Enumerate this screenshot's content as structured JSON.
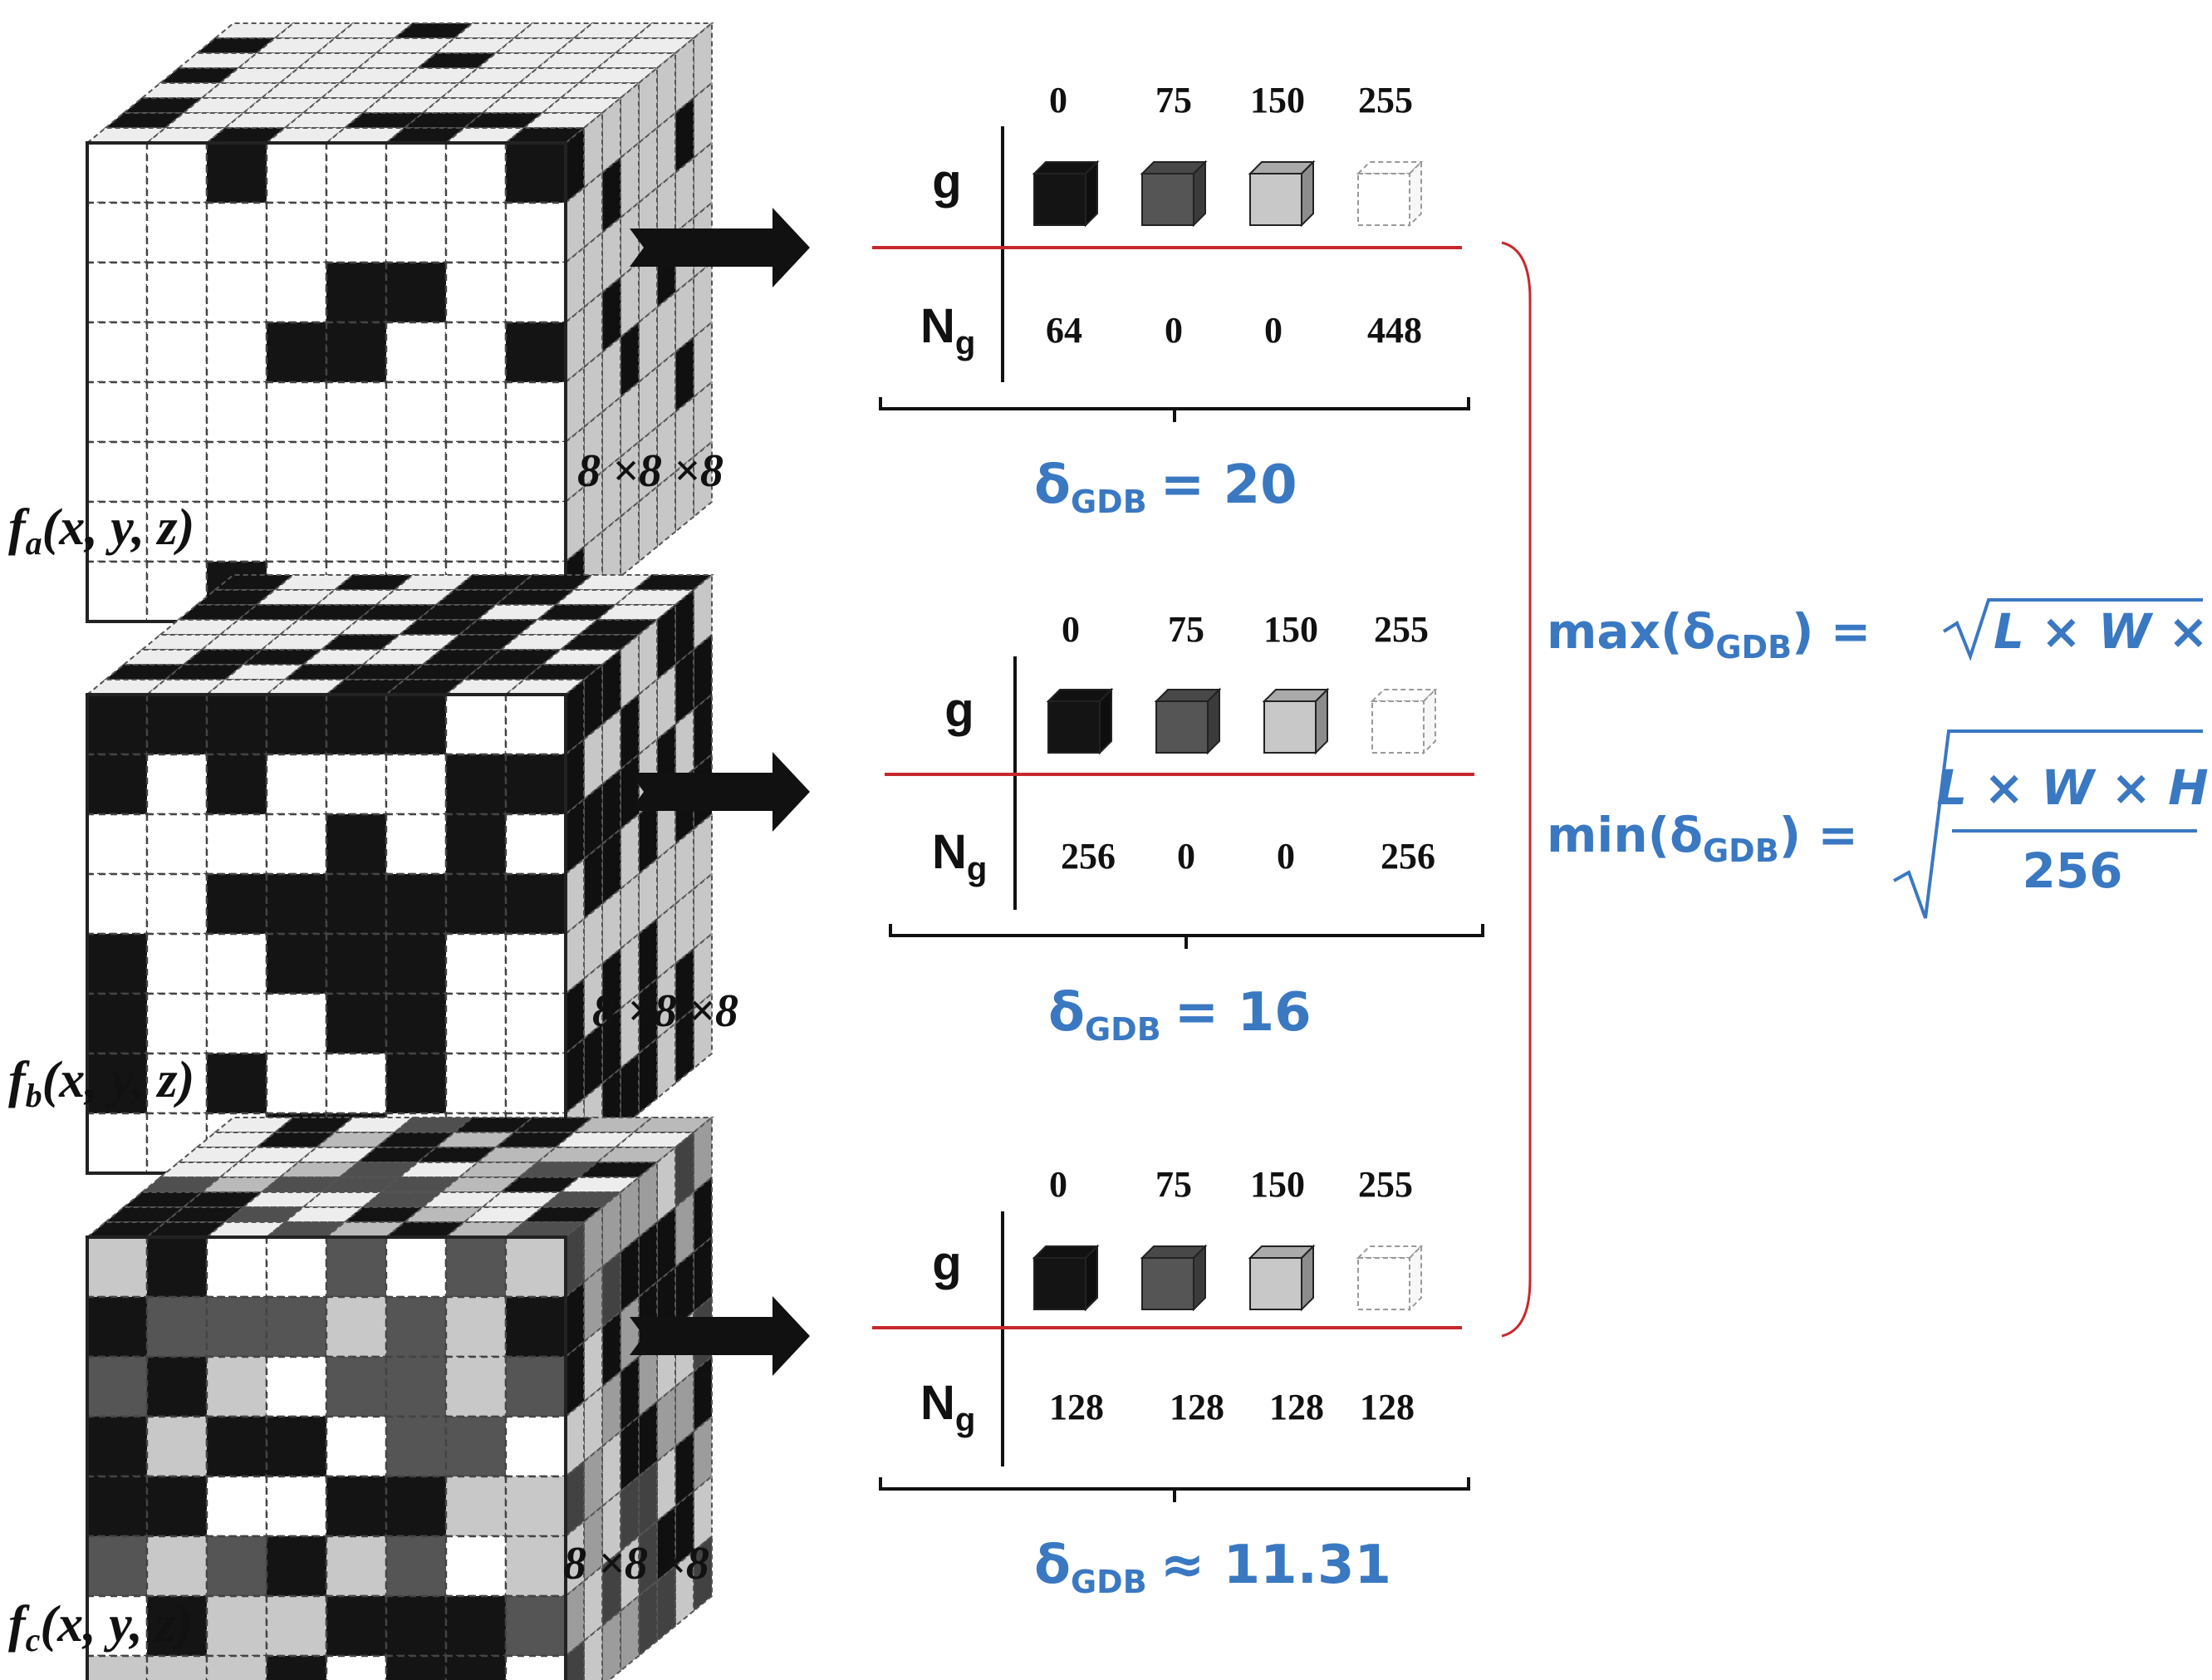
{
  "colors": {
    "accent": "#3a78c2",
    "divider": "#c8282d",
    "voxel_black": "#141414",
    "voxel_dark": "#555555",
    "voxel_light": "#c8c8c8",
    "voxel_white": "#ffffff"
  },
  "header_label": "g",
  "count_label": "N",
  "count_sub": "g",
  "grey_levels": [
    "0",
    "75",
    "150",
    "255"
  ],
  "rows": [
    {
      "fname": "f",
      "fsub": "a",
      "fargs": "(x, y, z)",
      "dims": "8 ×8 ×8",
      "counts": [
        "64",
        "0",
        "0",
        "448"
      ],
      "delta_sym": "δ",
      "delta_sub": "GDB",
      "delta_rel": "= 20"
    },
    {
      "fname": "f",
      "fsub": "b",
      "fargs": "(x, y, z)",
      "dims": "8 ×8 ×8",
      "counts": [
        "256",
        "0",
        "0",
        "256"
      ],
      "delta_sym": "δ",
      "delta_sub": "GDB",
      "delta_rel": "= 16"
    },
    {
      "fname": "f",
      "fsub": "c",
      "fargs": "(x, y, z)",
      "dims": "8 ×8 ×8",
      "counts": [
        "128",
        "128",
        "128",
        "128"
      ],
      "delta_sym": "δ",
      "delta_sub": "GDB",
      "delta_rel": "≈ 11.31"
    }
  ],
  "formula_max": {
    "func": "max(δ",
    "sub": "GDB",
    "close": ") =",
    "radicand": "L × W × H"
  },
  "formula_min": {
    "func": "min(δ",
    "sub": "GDB",
    "close": ") =",
    "numerator": "L × W × H",
    "denominator": "256"
  }
}
